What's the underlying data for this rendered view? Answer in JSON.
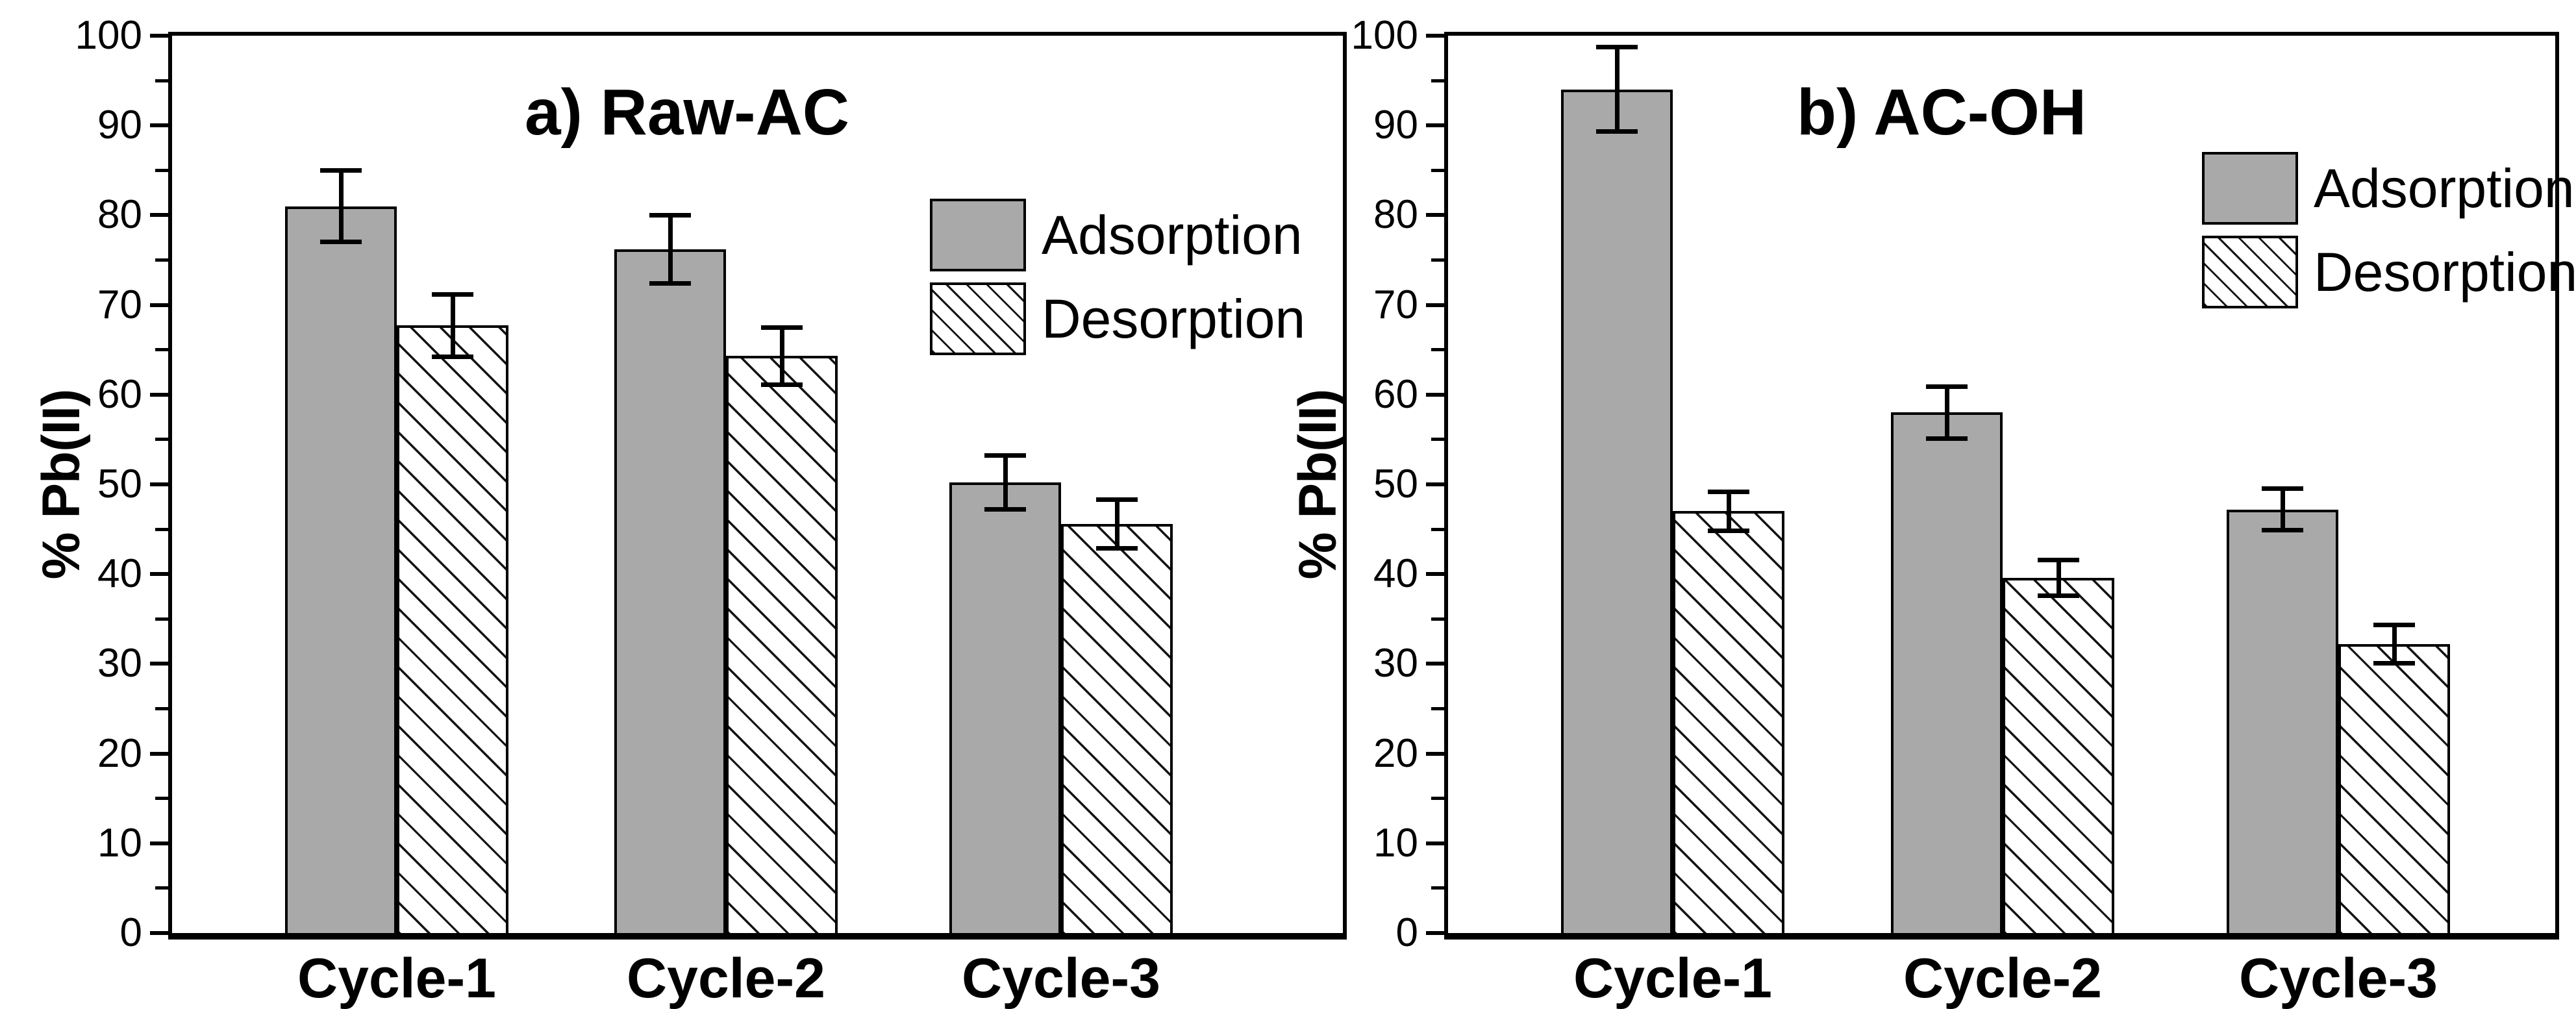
{
  "colors": {
    "adsorption_fill": "#a9a9a9",
    "desorption_fill": "#ffffff",
    "hatch_line": "#141414",
    "axis_and_text": "#000000",
    "background": "#ffffff"
  },
  "chart_data": [
    {
      "type": "bar",
      "panel_label": "a) Raw-AC",
      "ylabel": "% Pb(II)",
      "xlabel": "",
      "ylim": [
        0,
        100
      ],
      "ytick_step": 10,
      "minor_tick_step": 5,
      "grid": "off",
      "legend_position": "upper-right-inside",
      "error_bars": "symmetric, black caps",
      "ytick_labels": [
        "0",
        "10",
        "20",
        "30",
        "40",
        "50",
        "60",
        "70",
        "80",
        "90",
        "100"
      ],
      "categories": [
        "Cycle-1",
        "Cycle-2",
        "Cycle-3"
      ],
      "series": [
        {
          "name": "Adsorption",
          "pattern": "solid-gray",
          "values": [
            81.0,
            76.2,
            50.2
          ],
          "errors": [
            4.0,
            3.8,
            3.0
          ]
        },
        {
          "name": "Desorption",
          "pattern": "diagonal-hatch",
          "values": [
            67.7,
            64.3,
            45.6
          ],
          "errors": [
            3.5,
            3.2,
            2.7
          ]
        }
      ]
    },
    {
      "type": "bar",
      "panel_label": "b) AC-OH",
      "ylabel": "% Pb(II)",
      "xlabel": "",
      "ylim": [
        0,
        100
      ],
      "ytick_step": 10,
      "minor_tick_step": 5,
      "grid": "off",
      "legend_position": "upper-right-inside",
      "error_bars": "symmetric, black caps",
      "ytick_labels": [
        "0",
        "10",
        "20",
        "30",
        "40",
        "50",
        "60",
        "70",
        "80",
        "90",
        "100"
      ],
      "categories": [
        "Cycle-1",
        "Cycle-2",
        "Cycle-3"
      ],
      "series": [
        {
          "name": "Adsorption",
          "pattern": "solid-gray",
          "values": [
            94.0,
            58.0,
            47.2
          ],
          "errors": [
            4.7,
            2.9,
            2.3
          ]
        },
        {
          "name": "Desorption",
          "pattern": "diagonal-hatch",
          "values": [
            47.0,
            39.6,
            32.2
          ],
          "errors": [
            2.2,
            2.0,
            2.1
          ]
        }
      ]
    }
  ]
}
